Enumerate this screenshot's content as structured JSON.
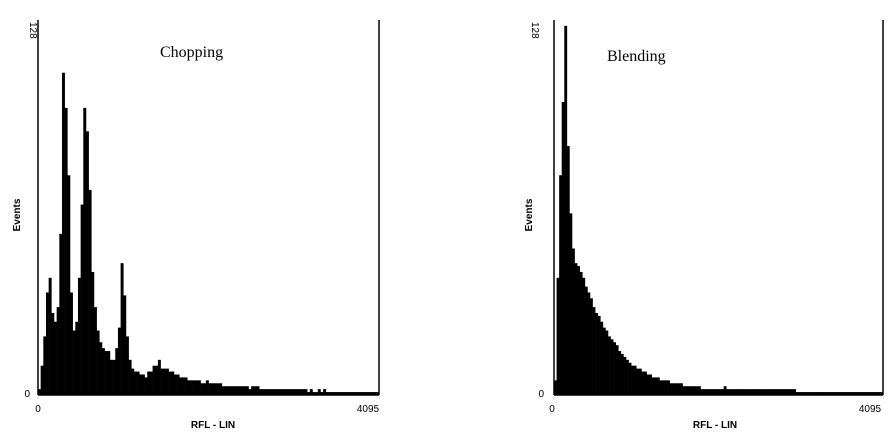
{
  "chart_data": [
    {
      "type": "bar",
      "title": "Chopping",
      "xlabel": "RFL - LIN",
      "ylabel": "Events",
      "xlim": [
        0,
        4095
      ],
      "ylim": [
        0,
        128
      ],
      "x_ticks": [
        "0",
        "4095"
      ],
      "y_ticks": [
        "0",
        "128"
      ],
      "bin_width": 32,
      "x": [
        0,
        32,
        64,
        96,
        128,
        160,
        192,
        224,
        256,
        288,
        320,
        352,
        384,
        416,
        448,
        480,
        512,
        544,
        576,
        608,
        640,
        672,
        704,
        736,
        768,
        800,
        832,
        864,
        896,
        928,
        960,
        992,
        1024,
        1056,
        1088,
        1120,
        1152,
        1184,
        1216,
        1248,
        1280,
        1312,
        1344,
        1376,
        1408,
        1440,
        1472,
        1504,
        1536,
        1568,
        1600,
        1632,
        1664,
        1696,
        1728,
        1760,
        1792,
        1824,
        1856,
        1888,
        1920,
        1952,
        1984,
        2016,
        2048,
        2080,
        2112,
        2144,
        2176,
        2208,
        2240,
        2272,
        2304,
        2336,
        2368,
        2400,
        2432,
        2464,
        2496,
        2528,
        2560,
        2592,
        2624,
        2656,
        2688,
        2720,
        2752,
        2784,
        2816,
        2848,
        2880,
        2912,
        2944,
        2976,
        3008,
        3040,
        3072,
        3104,
        3136,
        3168,
        3200,
        3232,
        3264,
        3296,
        3328,
        3360,
        3392,
        3424,
        3456,
        3488,
        3520,
        3552,
        3584,
        3616,
        3648,
        3680,
        3712,
        3744,
        3776,
        3808,
        3840,
        3872,
        3904,
        3936,
        3968,
        4000,
        4032,
        4064
      ],
      "values": [
        2,
        10,
        20,
        35,
        40,
        28,
        25,
        30,
        55,
        110,
        98,
        75,
        35,
        22,
        25,
        40,
        65,
        98,
        90,
        70,
        42,
        30,
        22,
        18,
        16,
        15,
        15,
        12,
        12,
        16,
        23,
        45,
        34,
        20,
        12,
        9,
        8,
        8,
        7,
        7,
        6,
        8,
        8,
        10,
        10,
        12,
        9,
        9,
        9,
        8,
        8,
        7,
        7,
        6,
        6,
        6,
        5,
        5,
        5,
        5,
        5,
        4,
        4,
        5,
        4,
        4,
        4,
        4,
        4,
        3,
        3,
        3,
        3,
        3,
        3,
        3,
        3,
        3,
        3,
        2,
        3,
        3,
        3,
        2,
        2,
        2,
        2,
        2,
        2,
        2,
        2,
        2,
        2,
        2,
        2,
        2,
        2,
        2,
        2,
        2,
        2,
        1,
        2,
        1,
        1,
        2,
        1,
        2,
        1,
        1,
        1,
        1,
        1,
        1,
        1,
        1,
        1,
        1,
        1,
        1,
        1,
        1,
        1,
        1,
        1,
        1,
        1,
        1
      ]
    },
    {
      "type": "bar",
      "title": "Blending",
      "xlabel": "RFL - LIN",
      "ylabel": "Events",
      "xlim": [
        0,
        4095
      ],
      "ylim": [
        0,
        128
      ],
      "x_ticks": [
        "0",
        "4095"
      ],
      "y_ticks": [
        "0",
        "128"
      ],
      "bin_width": 32,
      "x": [
        0,
        32,
        64,
        96,
        128,
        160,
        192,
        224,
        256,
        288,
        320,
        352,
        384,
        416,
        448,
        480,
        512,
        544,
        576,
        608,
        640,
        672,
        704,
        736,
        768,
        800,
        832,
        864,
        896,
        928,
        960,
        992,
        1024,
        1056,
        1088,
        1120,
        1152,
        1184,
        1216,
        1248,
        1280,
        1312,
        1344,
        1376,
        1408,
        1440,
        1472,
        1504,
        1536,
        1568,
        1600,
        1632,
        1664,
        1696,
        1728,
        1760,
        1792,
        1824,
        1856,
        1888,
        1920,
        1952,
        1984,
        2016,
        2048,
        2080,
        2112,
        2144,
        2176,
        2208,
        2240,
        2272,
        2304,
        2336,
        2368,
        2400,
        2432,
        2464,
        2496,
        2528,
        2560,
        2592,
        2624,
        2656,
        2688,
        2720,
        2752,
        2784,
        2816,
        2848,
        2880,
        2912,
        2944,
        2976,
        3008,
        3040,
        3072,
        3104,
        3136,
        3168,
        3200,
        3232,
        3264,
        3296,
        3328,
        3360,
        3392,
        3424,
        3456,
        3488,
        3520,
        3552,
        3584,
        3616,
        3648,
        3680,
        3712,
        3744,
        3776,
        3808,
        3840,
        3872,
        3904,
        3936,
        3968,
        4000,
        4032,
        4064
      ],
      "values": [
        5,
        40,
        75,
        100,
        126,
        85,
        62,
        50,
        45,
        44,
        42,
        40,
        37,
        35,
        33,
        30,
        28,
        27,
        25,
        23,
        22,
        20,
        19,
        18,
        17,
        15,
        14,
        13,
        12,
        11,
        10,
        10,
        9,
        9,
        8,
        8,
        7,
        7,
        6,
        6,
        6,
        5,
        5,
        5,
        5,
        4,
        4,
        4,
        4,
        4,
        3,
        3,
        3,
        3,
        3,
        3,
        3,
        2,
        2,
        2,
        2,
        2,
        2,
        2,
        2,
        2,
        3,
        2,
        2,
        2,
        2,
        2,
        2,
        2,
        2,
        2,
        2,
        2,
        2,
        2,
        2,
        2,
        2,
        2,
        2,
        2,
        2,
        2,
        2,
        2,
        2,
        2,
        2,
        2,
        1,
        1,
        1,
        1,
        1,
        1,
        1,
        1,
        1,
        1,
        1,
        1,
        1,
        1,
        1,
        1,
        1,
        1,
        1,
        1,
        1,
        1,
        1,
        1,
        1,
        1,
        1,
        1,
        1,
        1,
        1,
        1,
        1,
        1
      ]
    }
  ]
}
